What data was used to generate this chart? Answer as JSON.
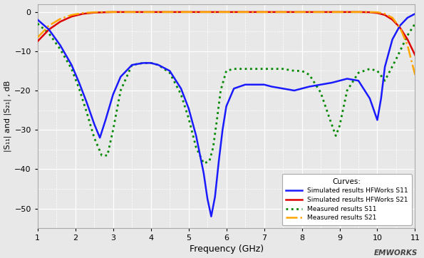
{
  "title": "",
  "xlabel": "Frequency (GHz)",
  "ylabel": "|S₁₁| and |S₂₁| , dB",
  "xlim": [
    1,
    11
  ],
  "ylim": [
    -55,
    2
  ],
  "xticks": [
    1,
    2,
    3,
    4,
    5,
    6,
    7,
    8,
    9,
    10,
    11
  ],
  "yticks": [
    0,
    -10,
    -20,
    -30,
    -40,
    -50
  ],
  "bg_color": "#e8e8e8",
  "plot_bg_color": "#e8e8e8",
  "grid_color": "#ffffff",
  "legend_title": "Curves:",
  "S11_sim_x": [
    1.0,
    1.3,
    1.6,
    1.9,
    2.1,
    2.3,
    2.5,
    2.65,
    2.8,
    3.0,
    3.2,
    3.5,
    3.8,
    4.0,
    4.2,
    4.5,
    4.8,
    5.0,
    5.2,
    5.4,
    5.5,
    5.6,
    5.7,
    5.8,
    5.9,
    6.0,
    6.2,
    6.5,
    6.8,
    7.0,
    7.2,
    7.5,
    7.8,
    8.0,
    8.2,
    8.5,
    8.8,
    9.0,
    9.2,
    9.5,
    9.8,
    10.0,
    10.1,
    10.2,
    10.4,
    10.6,
    10.8,
    11.0
  ],
  "S11_sim_y": [
    -2.0,
    -4.5,
    -8.5,
    -13.5,
    -18.0,
    -23.0,
    -28.5,
    -32.0,
    -27.5,
    -21.0,
    -16.5,
    -13.5,
    -13.0,
    -13.0,
    -13.5,
    -15.0,
    -19.5,
    -24.5,
    -31.5,
    -41.0,
    -47.5,
    -52.0,
    -47.0,
    -38.0,
    -30.0,
    -24.0,
    -19.5,
    -18.5,
    -18.5,
    -18.5,
    -19.0,
    -19.5,
    -20.0,
    -19.5,
    -19.0,
    -18.5,
    -18.0,
    -17.5,
    -17.0,
    -17.5,
    -22.0,
    -27.5,
    -22.0,
    -14.0,
    -7.0,
    -3.5,
    -1.5,
    -0.5
  ],
  "S21_sim_x": [
    1.0,
    1.3,
    1.6,
    1.9,
    2.2,
    2.5,
    2.8,
    3.0,
    4.0,
    5.0,
    6.0,
    7.0,
    8.0,
    9.0,
    9.5,
    9.8,
    10.0,
    10.2,
    10.4,
    10.6,
    10.8,
    11.0
  ],
  "S21_sim_y": [
    -7.5,
    -4.5,
    -2.5,
    -1.2,
    -0.5,
    -0.2,
    -0.1,
    -0.05,
    -0.05,
    -0.05,
    -0.05,
    -0.05,
    -0.05,
    -0.05,
    -0.05,
    -0.1,
    -0.3,
    -0.8,
    -2.0,
    -4.0,
    -7.0,
    -11.0
  ],
  "S11_meas_x": [
    1.0,
    1.3,
    1.6,
    1.9,
    2.1,
    2.3,
    2.5,
    2.7,
    2.85,
    3.0,
    3.2,
    3.5,
    3.8,
    4.0,
    4.2,
    4.5,
    4.8,
    5.0,
    5.2,
    5.4,
    5.55,
    5.65,
    5.75,
    5.85,
    6.0,
    6.2,
    6.5,
    6.8,
    7.0,
    7.2,
    7.5,
    7.8,
    8.0,
    8.2,
    8.5,
    8.75,
    8.9,
    9.0,
    9.1,
    9.2,
    9.5,
    9.8,
    10.0,
    10.2,
    10.5,
    10.8,
    11.0
  ],
  "S11_meas_y": [
    -3.0,
    -5.5,
    -9.5,
    -14.5,
    -19.5,
    -25.5,
    -32.0,
    -36.5,
    -36.5,
    -30.0,
    -20.0,
    -13.5,
    -13.0,
    -13.0,
    -13.5,
    -15.5,
    -21.0,
    -27.0,
    -34.5,
    -38.5,
    -38.0,
    -34.5,
    -27.5,
    -20.0,
    -15.0,
    -14.5,
    -14.5,
    -14.5,
    -14.5,
    -14.5,
    -14.5,
    -15.0,
    -15.0,
    -16.0,
    -20.5,
    -27.5,
    -31.5,
    -29.0,
    -24.5,
    -20.0,
    -15.5,
    -14.5,
    -15.0,
    -17.5,
    -12.0,
    -6.0,
    -3.0
  ],
  "S21_meas_x": [
    1.0,
    1.3,
    1.6,
    1.9,
    2.2,
    2.5,
    2.8,
    3.0,
    4.0,
    5.0,
    6.0,
    7.0,
    8.0,
    9.0,
    9.5,
    9.8,
    10.0,
    10.2,
    10.4,
    10.6,
    10.8,
    11.0
  ],
  "S21_meas_y": [
    -6.5,
    -3.5,
    -1.8,
    -0.8,
    -0.3,
    -0.1,
    -0.05,
    -0.05,
    -0.05,
    -0.05,
    -0.05,
    -0.05,
    -0.05,
    -0.05,
    -0.05,
    -0.05,
    -0.1,
    -0.5,
    -1.5,
    -4.0,
    -8.5,
    -16.0
  ]
}
